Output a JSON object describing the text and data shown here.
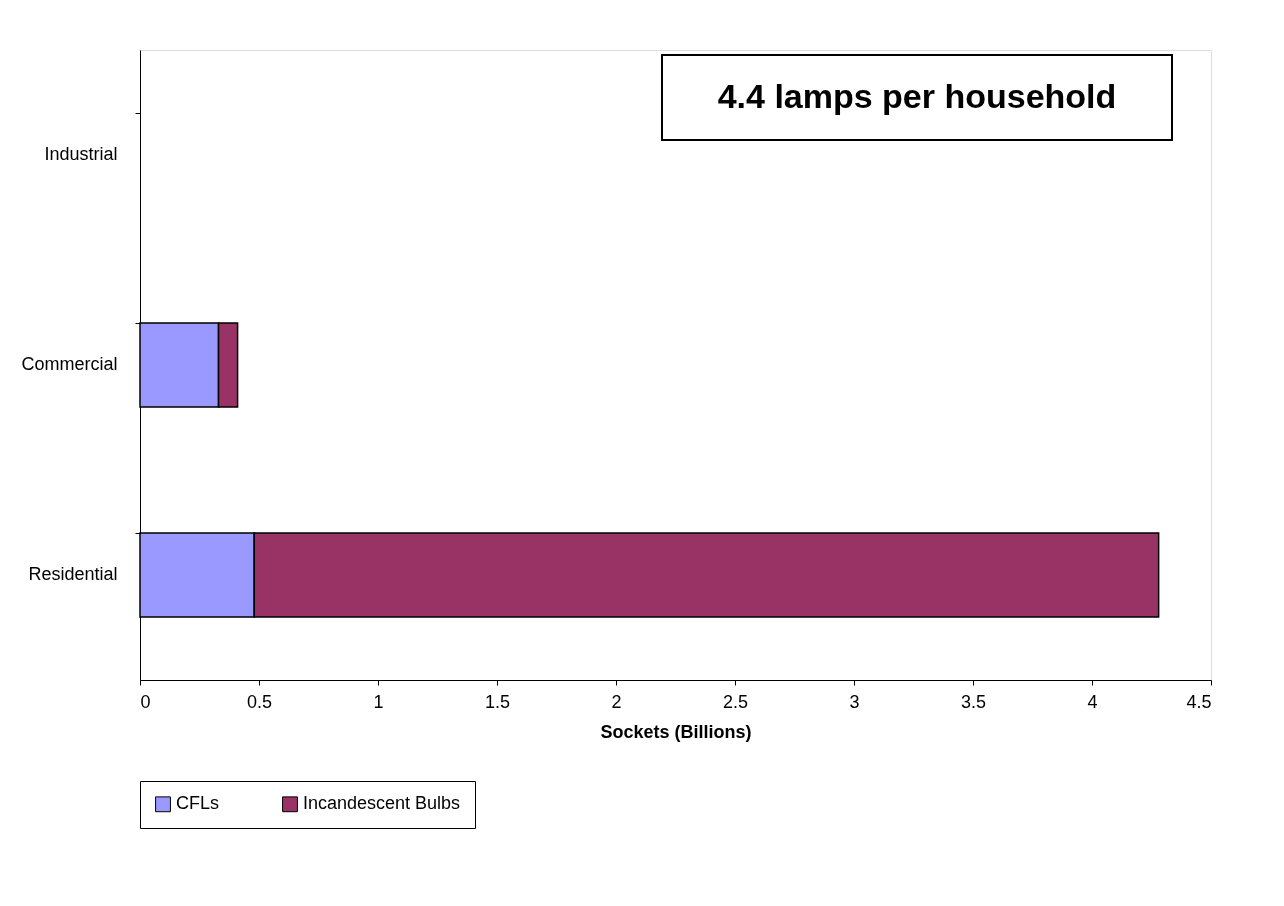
{
  "chart_data": {
    "type": "bar",
    "orientation": "horizontal",
    "stacked": true,
    "xlabel": "Sockets (Billions)",
    "categories": [
      "Industrial",
      "Commercial",
      "Residential"
    ],
    "series": [
      {
        "name": "CFLs",
        "color": "#9999ff",
        "values": [
          null,
          0.33,
          0.48
        ]
      },
      {
        "name": "Incandescent Bulbs",
        "color": "#993366",
        "values": [
          null,
          0.08,
          3.8
        ]
      }
    ],
    "xlim": [
      0,
      4.5
    ],
    "xticks": [
      0,
      0.5,
      1,
      1.5,
      2,
      2.5,
      3,
      3.5,
      4,
      4.5
    ],
    "grid": false,
    "legend": "bottom",
    "annotations": [
      "4.4 lamps per household"
    ]
  }
}
